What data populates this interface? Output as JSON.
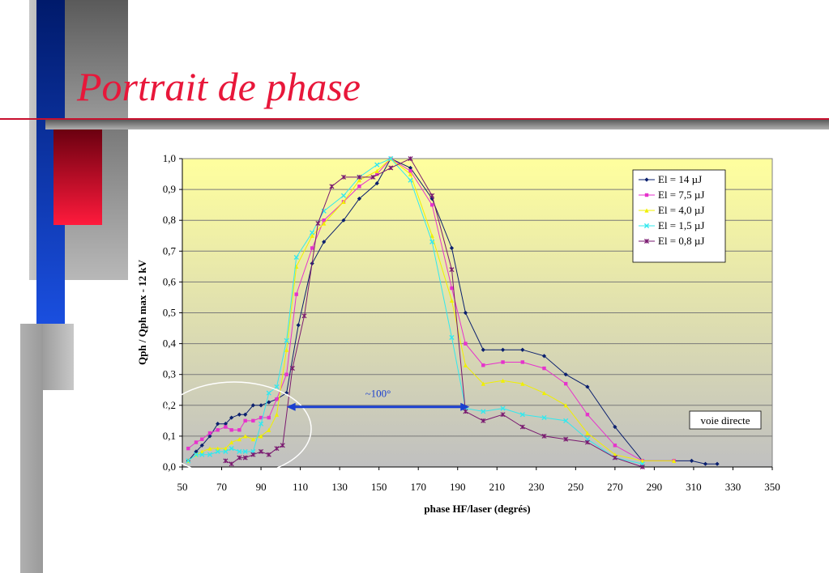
{
  "slide": {
    "title": "Portrait de phase"
  },
  "colors": {
    "title": "#e8173a",
    "annotation": "#1a3fd0"
  },
  "chart_data": {
    "type": "line",
    "xlabel": "phase HF/laser (degrés)",
    "ylabel": "Qph / Qph max - 12 kV",
    "xlim": [
      50,
      350
    ],
    "ylim": [
      0,
      1.0
    ],
    "x_ticks": [
      "50",
      "70",
      "90",
      "110",
      "130",
      "150",
      "170",
      "190",
      "210",
      "230",
      "250",
      "270",
      "290",
      "310",
      "330",
      "350"
    ],
    "y_ticks": [
      "0,0",
      "0,1",
      "0,2",
      "0,3",
      "0,4",
      "0,5",
      "0,6",
      "0,7",
      "0,8",
      "0,9",
      "1,0"
    ],
    "grid": true,
    "legend_position": "top-right",
    "series": [
      {
        "name": "El = 14 µJ",
        "color": "#0a1f6e",
        "marker": "diamond",
        "points": [
          [
            53,
            0.02
          ],
          [
            57,
            0.05
          ],
          [
            60,
            0.07
          ],
          [
            64,
            0.1
          ],
          [
            68,
            0.14
          ],
          [
            72,
            0.14
          ],
          [
            75,
            0.16
          ],
          [
            79,
            0.17
          ],
          [
            82,
            0.17
          ],
          [
            86,
            0.2
          ],
          [
            90,
            0.2
          ],
          [
            94,
            0.21
          ],
          [
            98,
            0.22
          ],
          [
            103,
            0.24
          ],
          [
            109,
            0.46
          ],
          [
            116,
            0.66
          ],
          [
            122,
            0.73
          ],
          [
            132,
            0.8
          ],
          [
            140,
            0.87
          ],
          [
            149,
            0.92
          ],
          [
            156,
            1.0
          ],
          [
            166,
            0.97
          ],
          [
            177,
            0.87
          ],
          [
            187,
            0.71
          ],
          [
            194,
            0.5
          ],
          [
            203,
            0.38
          ],
          [
            213,
            0.38
          ],
          [
            223,
            0.38
          ],
          [
            234,
            0.36
          ],
          [
            245,
            0.3
          ],
          [
            256,
            0.26
          ],
          [
            270,
            0.13
          ],
          [
            284,
            0.02
          ],
          [
            300,
            0.02
          ],
          [
            309,
            0.02
          ],
          [
            316,
            0.01
          ],
          [
            322,
            0.01
          ]
        ]
      },
      {
        "name": "El = 7,5 µJ",
        "color": "#e633cc",
        "marker": "square",
        "points": [
          [
            53,
            0.06
          ],
          [
            57,
            0.08
          ],
          [
            60,
            0.09
          ],
          [
            64,
            0.11
          ],
          [
            68,
            0.12
          ],
          [
            72,
            0.13
          ],
          [
            75,
            0.12
          ],
          [
            79,
            0.12
          ],
          [
            82,
            0.15
          ],
          [
            86,
            0.15
          ],
          [
            90,
            0.16
          ],
          [
            94,
            0.16
          ],
          [
            98,
            0.22
          ],
          [
            103,
            0.3
          ],
          [
            108,
            0.56
          ],
          [
            116,
            0.71
          ],
          [
            122,
            0.8
          ],
          [
            132,
            0.86
          ],
          [
            140,
            0.91
          ],
          [
            149,
            0.95
          ],
          [
            156,
            1.0
          ],
          [
            166,
            0.96
          ],
          [
            177,
            0.85
          ],
          [
            187,
            0.58
          ],
          [
            194,
            0.4
          ],
          [
            203,
            0.33
          ],
          [
            213,
            0.34
          ],
          [
            223,
            0.34
          ],
          [
            234,
            0.32
          ],
          [
            245,
            0.27
          ],
          [
            256,
            0.17
          ],
          [
            270,
            0.07
          ],
          [
            284,
            0.02
          ],
          [
            300,
            0.02
          ]
        ]
      },
      {
        "name": "El = 4,0 µJ",
        "color": "#f0f000",
        "marker": "triangle",
        "points": [
          [
            53,
            0.02
          ],
          [
            57,
            0.04
          ],
          [
            60,
            0.05
          ],
          [
            64,
            0.06
          ],
          [
            68,
            0.06
          ],
          [
            72,
            0.06
          ],
          [
            75,
            0.08
          ],
          [
            79,
            0.09
          ],
          [
            82,
            0.1
          ],
          [
            86,
            0.09
          ],
          [
            90,
            0.1
          ],
          [
            94,
            0.12
          ],
          [
            98,
            0.17
          ],
          [
            103,
            0.38
          ],
          [
            108,
            0.65
          ],
          [
            116,
            0.75
          ],
          [
            122,
            0.79
          ],
          [
            132,
            0.86
          ],
          [
            140,
            0.93
          ],
          [
            149,
            0.96
          ],
          [
            156,
            1.0
          ],
          [
            166,
            0.95
          ],
          [
            177,
            0.75
          ],
          [
            187,
            0.54
          ],
          [
            194,
            0.33
          ],
          [
            203,
            0.27
          ],
          [
            213,
            0.28
          ],
          [
            223,
            0.27
          ],
          [
            234,
            0.24
          ],
          [
            245,
            0.2
          ],
          [
            256,
            0.11
          ],
          [
            270,
            0.04
          ],
          [
            284,
            0.02
          ],
          [
            300,
            0.02
          ]
        ]
      },
      {
        "name": "El = 1,5 µJ",
        "color": "#33e8ee",
        "marker": "x",
        "points": [
          [
            53,
            0.02
          ],
          [
            57,
            0.04
          ],
          [
            60,
            0.04
          ],
          [
            64,
            0.04
          ],
          [
            68,
            0.05
          ],
          [
            72,
            0.05
          ],
          [
            75,
            0.06
          ],
          [
            79,
            0.05
          ],
          [
            82,
            0.05
          ],
          [
            86,
            0.05
          ],
          [
            90,
            0.14
          ],
          [
            94,
            0.24
          ],
          [
            98,
            0.26
          ],
          [
            103,
            0.41
          ],
          [
            108,
            0.68
          ],
          [
            116,
            0.76
          ],
          [
            122,
            0.83
          ],
          [
            132,
            0.88
          ],
          [
            140,
            0.94
          ],
          [
            149,
            0.98
          ],
          [
            156,
            1.0
          ],
          [
            166,
            0.93
          ],
          [
            177,
            0.73
          ],
          [
            187,
            0.42
          ],
          [
            194,
            0.19
          ],
          [
            203,
            0.18
          ],
          [
            213,
            0.19
          ],
          [
            223,
            0.17
          ],
          [
            234,
            0.16
          ],
          [
            245,
            0.15
          ],
          [
            256,
            0.09
          ],
          [
            270,
            0.03
          ],
          [
            284,
            0.01
          ]
        ]
      },
      {
        "name": "El = 0,8 µJ",
        "color": "#7a1a70",
        "marker": "star",
        "points": [
          [
            72,
            0.02
          ],
          [
            75,
            0.01
          ],
          [
            79,
            0.03
          ],
          [
            82,
            0.03
          ],
          [
            86,
            0.04
          ],
          [
            90,
            0.05
          ],
          [
            94,
            0.04
          ],
          [
            98,
            0.06
          ],
          [
            101,
            0.07
          ],
          [
            106,
            0.32
          ],
          [
            112,
            0.49
          ],
          [
            119,
            0.79
          ],
          [
            126,
            0.91
          ],
          [
            132,
            0.94
          ],
          [
            140,
            0.94
          ],
          [
            147,
            0.94
          ],
          [
            156,
            0.97
          ],
          [
            166,
            1.0
          ],
          [
            177,
            0.88
          ],
          [
            187,
            0.64
          ],
          [
            194,
            0.18
          ],
          [
            203,
            0.15
          ],
          [
            213,
            0.17
          ],
          [
            223,
            0.13
          ],
          [
            234,
            0.1
          ],
          [
            245,
            0.09
          ],
          [
            256,
            0.08
          ],
          [
            270,
            0.03
          ],
          [
            284,
            0.0
          ]
        ]
      }
    ],
    "annotations": {
      "arrow_label": "~100°",
      "arrow_from": 103,
      "arrow_to": 196,
      "arrow_y": 0.195,
      "box_label": "voie directe"
    }
  }
}
